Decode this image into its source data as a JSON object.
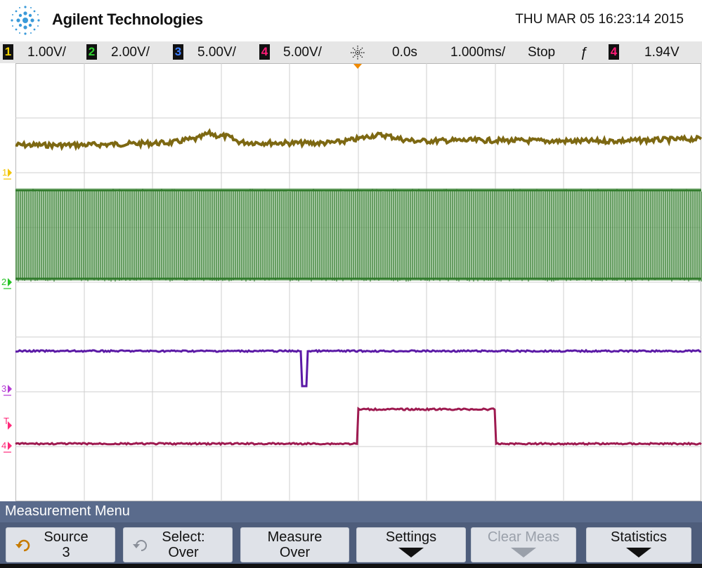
{
  "header": {
    "brand": "Agilent Technologies",
    "datetime": "THU MAR 05 16:23:14 2015"
  },
  "status": {
    "channels": [
      {
        "num": "1",
        "scale": "1.00V/",
        "color": "#f2d200"
      },
      {
        "num": "2",
        "scale": "2.00V/",
        "color": "#2fd12f"
      },
      {
        "num": "3",
        "scale": "5.00V/",
        "color": "#3f7fff"
      },
      {
        "num": "4",
        "scale": "5.00V/",
        "color": "#ff1b77"
      }
    ],
    "delay": "0.0s",
    "timebase": "1.000ms/",
    "run_state": "Stop",
    "trigger_channel": "4",
    "trigger_level": "1.94V"
  },
  "traces": {
    "ch1_color": "#7d6812",
    "ch2_color": "#2f7a2a",
    "ch3_color": "#5b1aa6",
    "ch4_color": "#9e1a50"
  },
  "markers": {
    "ch1": "1",
    "ch2": "2",
    "ch3": "3",
    "ch4": "4",
    "trigger": "T"
  },
  "measurement_menu": {
    "title": "Measurement Menu",
    "source_label": "Source",
    "source_value": "3",
    "select_label": "Select:",
    "select_value": "Over",
    "measure_label": "Measure",
    "measure_value": "Over",
    "settings_label": "Settings",
    "clear_label": "Clear Meas",
    "statistics_label": "Statistics"
  }
}
